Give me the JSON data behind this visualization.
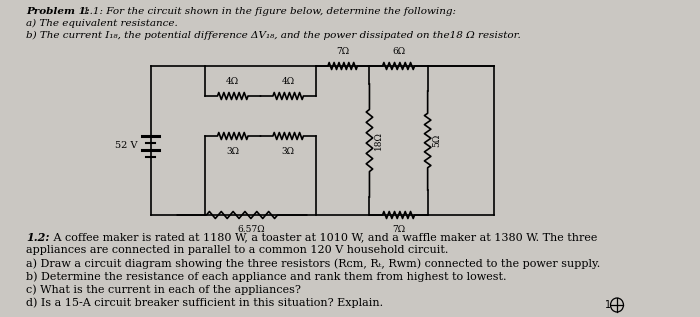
{
  "bg_color": "#cac7c2",
  "title_text": "Problem 1:",
  "line1": "1.1: For the circuit shown in the figure below, determine the following:",
  "line2": "a) The equivalent resistance.",
  "line3": "b) The current I₁₈, the potential difference ΔV₁₈, and the power dissipated on the18 Ω resistor.",
  "problem2_label": "1.2:",
  "problem2_line1": " A coffee maker is rated at 1180 W, a toaster at 1010 W, and a waffle maker at 1380 W. The three",
  "problem2_line2": "appliances are connected in parallel to a common 120 V household circuit.",
  "problem2_line3": "a) Draw a circuit diagram showing the three resistors (Rᴄm, Rₜ, Rᴡm) connected to the power supply.",
  "problem2_line4": "b) Determine the resistance of each appliance and rank them from highest to lowest.",
  "problem2_line5": "c) What is the current in each of the appliances?",
  "problem2_line6": "d) Is a 15-A circuit breaker sufficient in this situation? Explain.",
  "voltage": "52 V",
  "r1": "4Ω",
  "r2": "4Ω",
  "r3": "3Ω",
  "r4": "3Ω",
  "r5": "7Ω",
  "r6": "6Ω",
  "r7": "18Ω",
  "r8": "5Ω",
  "r9": "6.57Ω",
  "r10": "7Ω"
}
